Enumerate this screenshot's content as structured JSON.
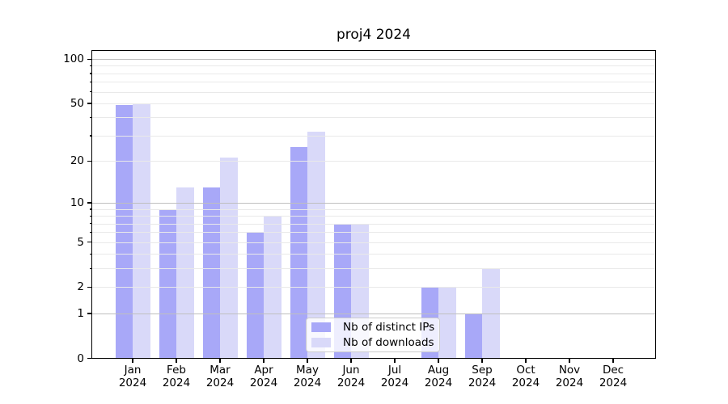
{
  "title": "proj4 2024",
  "chart_data": {
    "type": "bar",
    "title": "proj4 2024",
    "categories": [
      "Jan 2024",
      "Feb 2024",
      "Mar 2024",
      "Apr 2024",
      "May 2024",
      "Jun 2024",
      "Jul 2024",
      "Aug 2024",
      "Sep 2024",
      "Oct 2024",
      "Nov 2024",
      "Dec 2024"
    ],
    "months": [
      "Jan",
      "Feb",
      "Mar",
      "Apr",
      "May",
      "Jun",
      "Jul",
      "Aug",
      "Sep",
      "Oct",
      "Nov",
      "Dec"
    ],
    "year": "2024",
    "series": [
      {
        "name": "Nb of distinct IPs",
        "color": "#a8a8f8",
        "values": [
          49,
          9,
          13,
          6,
          25,
          7,
          0,
          2,
          1,
          0,
          0,
          0
        ]
      },
      {
        "name": "Nb of downloads",
        "color": "#d9d9f9",
        "values": [
          50,
          13,
          21,
          8,
          32,
          7,
          0,
          2,
          3,
          0,
          0,
          0
        ]
      }
    ],
    "xlabel": "",
    "ylabel": "",
    "yscale": "log1p",
    "ylim": [
      0,
      115
    ],
    "yticks": [
      0,
      1,
      2,
      5,
      10,
      20,
      50,
      100
    ],
    "ytick_labels": [
      "0",
      "1",
      "2",
      "5",
      "10",
      "20",
      "50",
      "100"
    ],
    "minor_gridlines": [
      2,
      3,
      4,
      5,
      6,
      7,
      8,
      9,
      20,
      30,
      40,
      50,
      60,
      70,
      80,
      90
    ],
    "major_gridlines": [
      1,
      10,
      100
    ],
    "grid": true,
    "grid_above_bars": true,
    "legend_position": "lower center",
    "colors": {
      "background": "#ffffff",
      "major_grid": "#bfbfbf",
      "minor_grid": "#e9e9e9",
      "axis": "#000000"
    }
  }
}
